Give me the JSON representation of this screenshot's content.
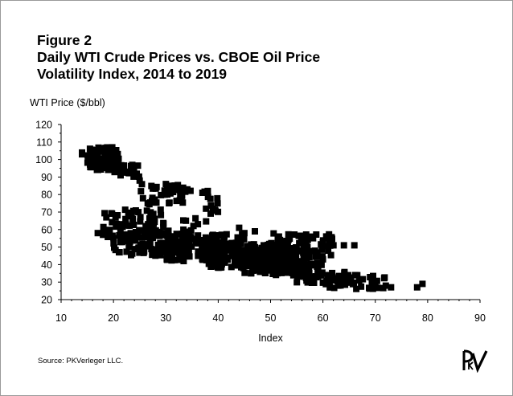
{
  "figure": {
    "number": "Figure 2",
    "title_line1": "Daily WTI Crude Prices vs. CBOE Oil Price",
    "title_line2": "Volatility Index, 2014 to 2019",
    "source": "Source: PKVerleger LLC."
  },
  "chart_data": {
    "type": "scatter",
    "title": "Daily WTI Crude Prices vs. CBOE Oil Price Volatility Index, 2014 to 2019",
    "xlabel": "Index",
    "ylabel": "WTI Price ($/bbl)",
    "xlim": [
      10,
      90
    ],
    "ylim": [
      20,
      120
    ],
    "xticks": [
      10,
      20,
      30,
      40,
      50,
      60,
      70,
      80,
      90
    ],
    "yticks": [
      20,
      30,
      40,
      50,
      60,
      70,
      80,
      90,
      100,
      110,
      120
    ],
    "marker": "square",
    "color": "#000000",
    "clusters": [
      {
        "x": [
          15,
          21
        ],
        "y": [
          94,
          107
        ],
        "n": 90
      },
      {
        "x": [
          20,
          25
        ],
        "y": [
          90,
          97
        ],
        "n": 25
      },
      {
        "x": [
          25,
          35
        ],
        "y": [
          74,
          86
        ],
        "n": 40
      },
      {
        "x": [
          33,
          40
        ],
        "y": [
          62,
          82
        ],
        "n": 20
      },
      {
        "x": [
          18,
          30
        ],
        "y": [
          55,
          72
        ],
        "n": 70
      },
      {
        "x": [
          20,
          35
        ],
        "y": [
          45,
          60
        ],
        "n": 120
      },
      {
        "x": [
          30,
          45
        ],
        "y": [
          42,
          58
        ],
        "n": 150
      },
      {
        "x": [
          38,
          52
        ],
        "y": [
          38,
          52
        ],
        "n": 180
      },
      {
        "x": [
          45,
          57
        ],
        "y": [
          35,
          50
        ],
        "n": 150
      },
      {
        "x": [
          50,
          62
        ],
        "y": [
          44,
          58
        ],
        "n": 80
      },
      {
        "x": [
          50,
          60
        ],
        "y": [
          33,
          42
        ],
        "n": 40
      },
      {
        "x": [
          55,
          66
        ],
        "y": [
          29,
          36
        ],
        "n": 40
      },
      {
        "x": [
          60,
          72
        ],
        "y": [
          26,
          34
        ],
        "n": 45
      }
    ],
    "points": [
      {
        "x": 14,
        "y": 104
      },
      {
        "x": 14,
        "y": 103
      },
      {
        "x": 17,
        "y": 58
      },
      {
        "x": 18,
        "y": 57
      },
      {
        "x": 19,
        "y": 58
      },
      {
        "x": 25,
        "y": 88
      },
      {
        "x": 30,
        "y": 86
      },
      {
        "x": 31,
        "y": 85
      },
      {
        "x": 37,
        "y": 81
      },
      {
        "x": 38,
        "y": 82
      },
      {
        "x": 44,
        "y": 61
      },
      {
        "x": 45,
        "y": 58
      },
      {
        "x": 47,
        "y": 59
      },
      {
        "x": 60,
        "y": 53
      },
      {
        "x": 62,
        "y": 51
      },
      {
        "x": 61,
        "y": 48
      },
      {
        "x": 64,
        "y": 51
      },
      {
        "x": 66,
        "y": 51
      },
      {
        "x": 60,
        "y": 43
      },
      {
        "x": 62,
        "y": 31
      },
      {
        "x": 70,
        "y": 28
      },
      {
        "x": 72,
        "y": 28
      },
      {
        "x": 73,
        "y": 27
      },
      {
        "x": 78,
        "y": 27
      },
      {
        "x": 79,
        "y": 29
      },
      {
        "x": 61,
        "y": 34
      },
      {
        "x": 59,
        "y": 36
      }
    ]
  },
  "logo": {
    "name": "pkverleger-logo",
    "text": "PkV"
  }
}
